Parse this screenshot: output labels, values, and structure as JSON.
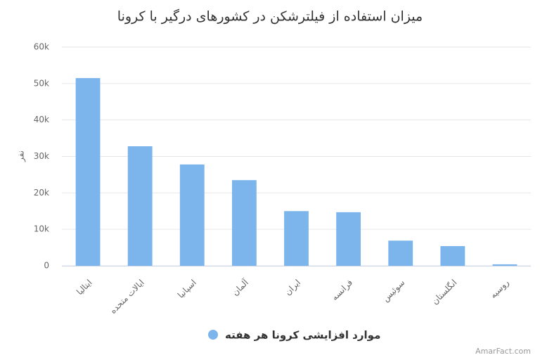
{
  "chart_data": {
    "type": "bar",
    "title": "میزان استفاده از فیلترشکن در کشورهای درگیر با کرونا",
    "y_label": "نفر",
    "categories": [
      "ایتالیا",
      "ایالات متحده",
      "اسپانیا",
      "آلمان",
      "ایران",
      "فرانسه",
      "سوئیس",
      "انگلستان",
      "روسیه"
    ],
    "series": [
      {
        "name": "موارد افزایشی کرونا هر هفته",
        "color": "#7cb5ec",
        "values": [
          51500,
          32800,
          27800,
          23500,
          15000,
          14700,
          6900,
          5400,
          400
        ]
      }
    ],
    "ylim": [
      0,
      60000
    ],
    "yticks": [
      0,
      {
        "value": 10000,
        "label": "10k"
      },
      {
        "value": 20000,
        "label": "20k"
      },
      {
        "value": 30000,
        "label": "30k"
      },
      {
        "value": 40000,
        "label": "40k"
      },
      {
        "value": 50000,
        "label": "50k"
      },
      {
        "value": 60000,
        "label": "60k"
      }
    ],
    "grid": true,
    "credit": "AmarFact.com"
  }
}
